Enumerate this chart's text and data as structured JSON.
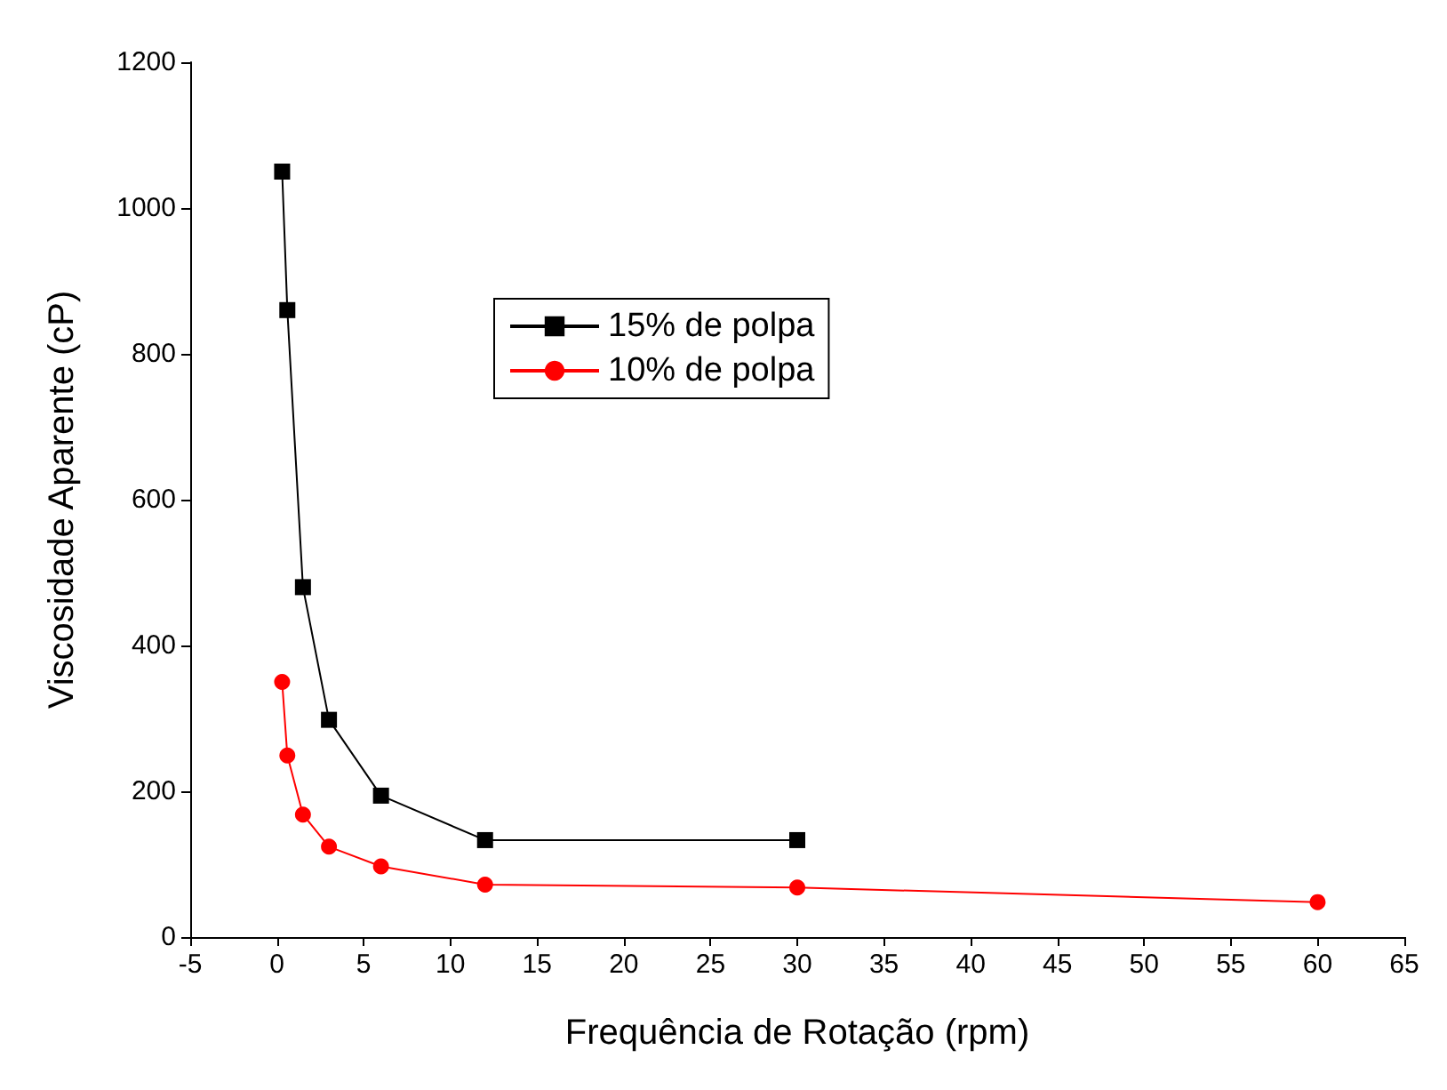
{
  "chart_data": {
    "type": "line",
    "xlabel": "Frequência de Rotação (rpm)",
    "ylabel": "Viscosidade Aparente (cP)",
    "xlim": [
      -5,
      65
    ],
    "xticks": [
      -5,
      0,
      5,
      10,
      15,
      20,
      25,
      30,
      35,
      40,
      45,
      50,
      55,
      60,
      65
    ],
    "ylim": [
      0,
      1200
    ],
    "yticks": [
      0,
      200,
      400,
      600,
      800,
      1000,
      1200
    ],
    "grid": false,
    "legend": "top",
    "line_style": "solid",
    "series": [
      {
        "name": "15% de polpa",
        "color": "#000000",
        "marker": "square",
        "x": [
          0.3,
          0.6,
          1.5,
          3,
          6,
          12,
          30
        ],
        "values": [
          1050,
          860,
          480,
          298,
          194,
          133,
          133
        ]
      },
      {
        "name": "10% de polpa",
        "color": "#ff0000",
        "marker": "circle",
        "x": [
          0.3,
          0.6,
          1.5,
          3,
          6,
          12,
          30,
          60
        ],
        "values": [
          350,
          249,
          168,
          124,
          97,
          72,
          68,
          48
        ]
      }
    ]
  }
}
